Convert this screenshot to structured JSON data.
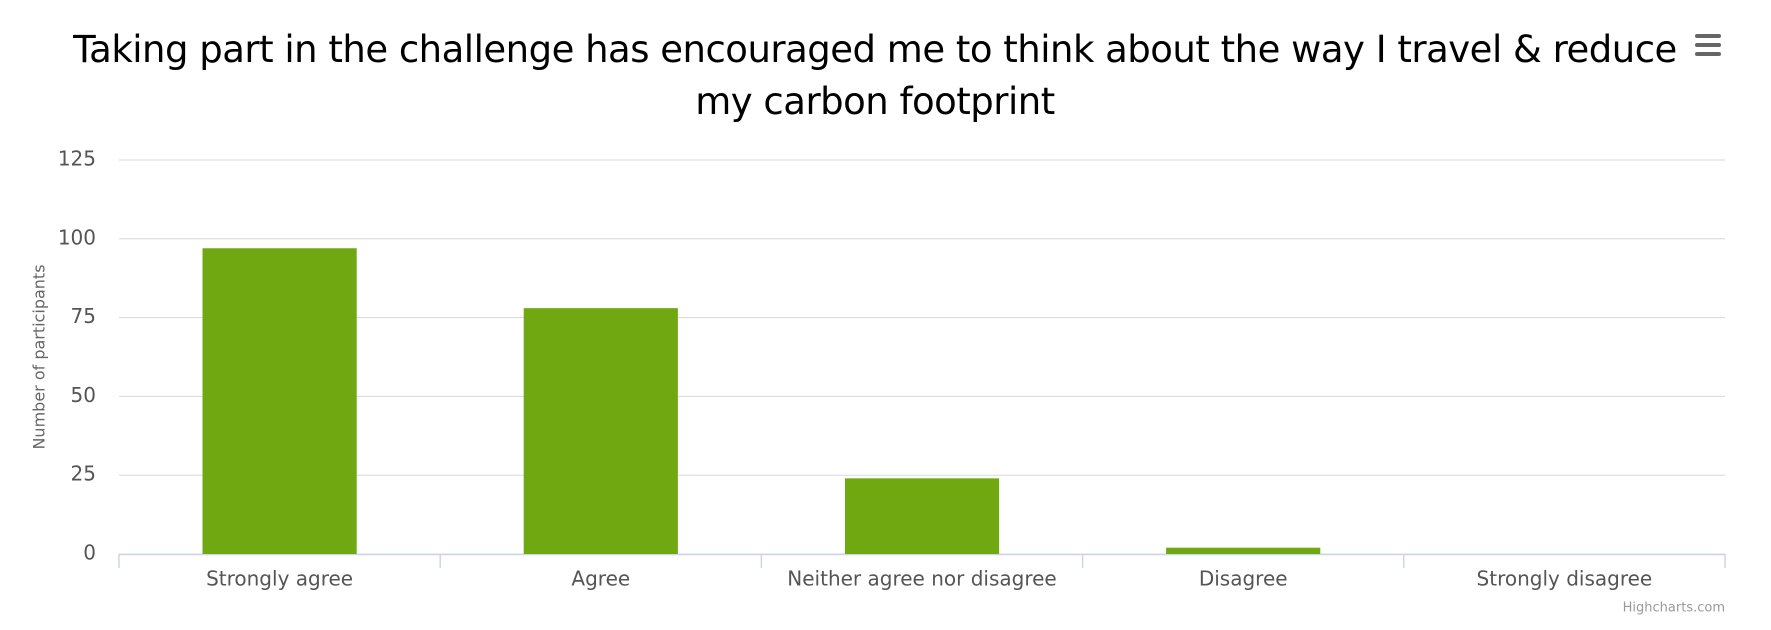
{
  "chart_data": {
    "type": "bar",
    "title": "Taking part in the challenge has encouraged me to think about the way I travel & reduce my carbon footprint",
    "y_label": "Number of participants",
    "categories": [
      "Strongly agree",
      "Agree",
      "Neither agree nor disagree",
      "Disagree",
      "Strongly disagree"
    ],
    "values": [
      97,
      78,
      24,
      2,
      0
    ],
    "color": "#70a811",
    "ylim": [
      0,
      125
    ],
    "yticks": [
      0,
      25,
      50,
      75,
      100,
      125
    ],
    "grid": true,
    "credits": "Highcharts.com"
  }
}
